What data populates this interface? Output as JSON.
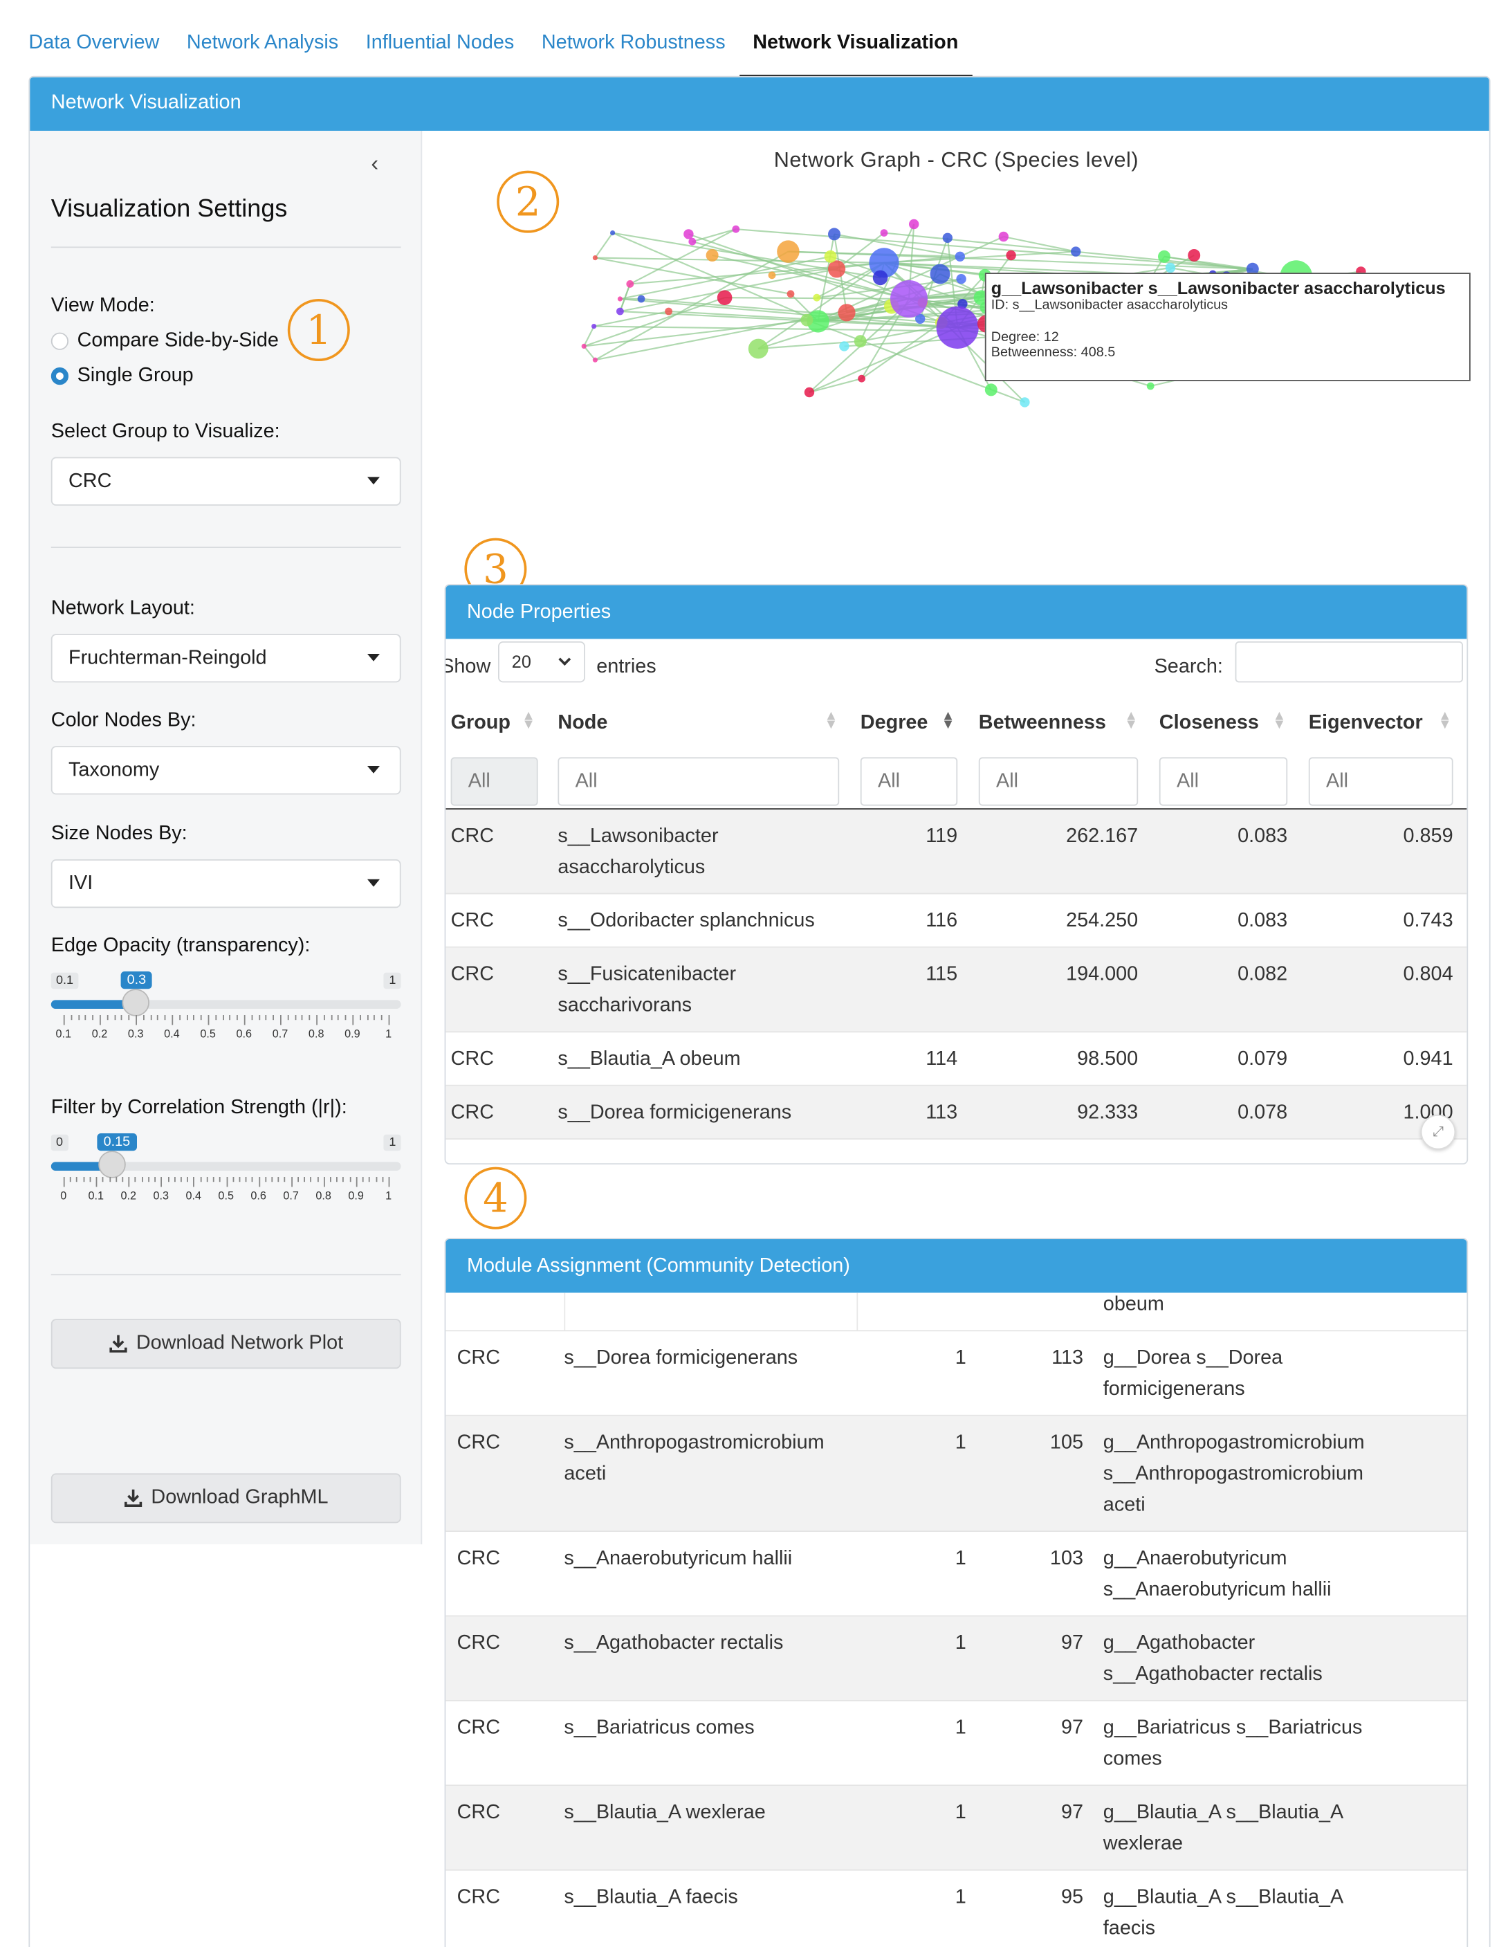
{
  "tabs": [
    {
      "label": "Data Overview",
      "active": false
    },
    {
      "label": "Network Analysis",
      "active": false
    },
    {
      "label": "Influential Nodes",
      "active": false
    },
    {
      "label": "Network Robustness",
      "active": false
    },
    {
      "label": "Network Visualization",
      "active": true
    }
  ],
  "main": {
    "header": "Network Visualization"
  },
  "sidebar": {
    "title": "Visualization Settings",
    "view_mode": {
      "label": "View Mode:",
      "options": [
        "Compare Side-by-Side",
        "Single Group"
      ],
      "selected": "Single Group"
    },
    "group_select": {
      "label": "Select Group to Visualize:",
      "value": "CRC"
    },
    "layout_select": {
      "label": "Network Layout:",
      "value": "Fruchterman-Reingold"
    },
    "color_select": {
      "label": "Color Nodes By:",
      "value": "Taxonomy"
    },
    "size_select": {
      "label": "Size Nodes By:",
      "value": "IVI"
    },
    "edge_opacity": {
      "label": "Edge Opacity (transparency):",
      "min": 0.1,
      "max": 1,
      "value": 0.3,
      "min_label": "0.1",
      "max_label": "1",
      "value_label": "0.3",
      "ticks": [
        "0.1",
        "0.2",
        "0.3",
        "0.4",
        "0.5",
        "0.6",
        "0.7",
        "0.8",
        "0.9",
        "1"
      ]
    },
    "corr_filter": {
      "label": "Filter by Correlation Strength (|r|):",
      "min": 0,
      "max": 1,
      "value": 0.15,
      "min_label": "0",
      "max_label": "1",
      "value_label": "0.15",
      "ticks": [
        "0",
        "0.1",
        "0.2",
        "0.3",
        "0.4",
        "0.5",
        "0.6",
        "0.7",
        "0.8",
        "0.9",
        "1"
      ]
    },
    "download_plot": "Download Network Plot",
    "download_graphml": "Download GraphML",
    "collapse_icon": "chevron-left-icon"
  },
  "annotations": [
    "1",
    "2",
    "3",
    "4"
  ],
  "graph": {
    "title": "Network Graph - CRC  (Species level)",
    "tooltip": {
      "title": "g__Lawsonibacter s__Lawsonibacter asaccharolyticus",
      "id": "ID: s__Lawsonibacter asaccharolyticus",
      "degree": "Degree: 12",
      "betweenness": "Betweenness: 408.5"
    },
    "node_colors": [
      "#e03bd3",
      "#f5a33b",
      "#4c6ef5",
      "#ef5350",
      "#a855f7",
      "#7c3aed",
      "#d4f542",
      "#5bf06a",
      "#6ee7f5",
      "#3b5bdb",
      "#e6194b",
      "#93e06a",
      "#2f2fd6",
      "#f542a7"
    ],
    "edge_color": "#8fc98f"
  },
  "node_properties": {
    "header": "Node Properties",
    "show_label": "Show",
    "length_value": "20",
    "entries_label": "entries",
    "search_label": "Search:",
    "columns": [
      "Group",
      "Node",
      "Degree",
      "Betweenness",
      "Closeness",
      "Eigenvector"
    ],
    "filter_placeholder": "All",
    "rows": [
      {
        "group": "CRC",
        "node": [
          "s__Lawsonibacter",
          "asaccharolyticus"
        ],
        "degree": "119",
        "betweenness": "262.167",
        "closeness": "0.083",
        "eigenvector": "0.859"
      },
      {
        "group": "CRC",
        "node": [
          "s__Odoribacter splanchnicus"
        ],
        "degree": "116",
        "betweenness": "254.250",
        "closeness": "0.083",
        "eigenvector": "0.743"
      },
      {
        "group": "CRC",
        "node": [
          "s__Fusicatenibacter",
          "saccharivorans"
        ],
        "degree": "115",
        "betweenness": "194.000",
        "closeness": "0.082",
        "eigenvector": "0.804"
      },
      {
        "group": "CRC",
        "node": [
          "s__Blautia_A obeum"
        ],
        "degree": "114",
        "betweenness": "98.500",
        "closeness": "0.079",
        "eigenvector": "0.941"
      },
      {
        "group": "CRC",
        "node": [
          "s__Dorea formicigenerans"
        ],
        "degree": "113",
        "betweenness": "92.333",
        "closeness": "0.078",
        "eigenvector": "1.000"
      }
    ]
  },
  "module_assignment": {
    "header": "Module Assignment (Community Detection)",
    "partial_top": "obeum",
    "rows": [
      {
        "group": "CRC",
        "node": [
          "s__Dorea formicigenerans"
        ],
        "module": "1",
        "degree": "113",
        "taxonomy": [
          "g__Dorea s__Dorea",
          "formicigenerans"
        ]
      },
      {
        "group": "CRC",
        "node": [
          "s__Anthropogastromicrobium",
          "aceti"
        ],
        "module": "1",
        "degree": "105",
        "taxonomy": [
          "g__Anthropogastromicrobium",
          "s__Anthropogastromicrobium",
          "aceti"
        ]
      },
      {
        "group": "CRC",
        "node": [
          "s__Anaerobutyricum hallii"
        ],
        "module": "1",
        "degree": "103",
        "taxonomy": [
          "g__Anaerobutyricum",
          "s__Anaerobutyricum hallii"
        ]
      },
      {
        "group": "CRC",
        "node": [
          "s__Agathobacter rectalis"
        ],
        "module": "1",
        "degree": "97",
        "taxonomy": [
          "g__Agathobacter",
          "s__Agathobacter rectalis"
        ]
      },
      {
        "group": "CRC",
        "node": [
          "s__Bariatricus comes"
        ],
        "module": "1",
        "degree": "97",
        "taxonomy": [
          "g__Bariatricus s__Bariatricus",
          "comes"
        ]
      },
      {
        "group": "CRC",
        "node": [
          "s__Blautia_A wexlerae"
        ],
        "module": "1",
        "degree": "97",
        "taxonomy": [
          "g__Blautia_A s__Blautia_A",
          "wexlerae"
        ]
      },
      {
        "group": "CRC",
        "node": [
          "s__Blautia_A faecis"
        ],
        "module": "1",
        "degree": "95",
        "taxonomy": [
          "g__Blautia_A s__Blautia_A",
          "faecis"
        ]
      }
    ]
  }
}
